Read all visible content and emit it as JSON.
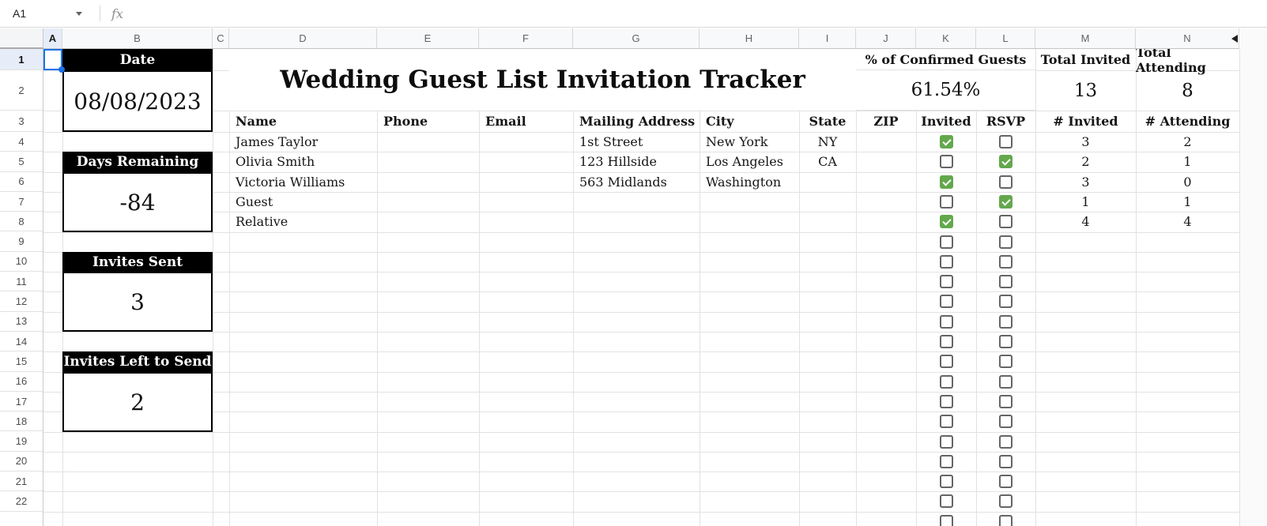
{
  "formula_bar": {
    "cell_reference": "A1",
    "fx_label": "fx"
  },
  "columns": {
    "letters": [
      "A",
      "B",
      "C",
      "D",
      "E",
      "F",
      "G",
      "H",
      "I",
      "J",
      "K",
      "L",
      "M",
      "N"
    ],
    "selected": "A"
  },
  "rows": {
    "numbers": [
      "1",
      "2",
      "3",
      "4",
      "5",
      "6",
      "7",
      "8",
      "9",
      "10",
      "11",
      "12",
      "13",
      "14",
      "15",
      "16",
      "17",
      "18",
      "19",
      "20",
      "21",
      "22"
    ],
    "selected": "1"
  },
  "title": "Wedding Guest List Invitation Tracker",
  "side_cards": [
    {
      "label": "Date",
      "value": "08/08/2023"
    },
    {
      "label": "Days Remaining",
      "value": "-84"
    },
    {
      "label": "Invites Sent",
      "value": "3"
    },
    {
      "label": "Invites Left to Send",
      "value": "2"
    }
  ],
  "summary": {
    "confirmed_label": "% of Confirmed Guests",
    "confirmed_value": "61.54%",
    "total_invited_label": "Total Invited",
    "total_invited_value": "13",
    "total_attending_label": "Total Attending",
    "total_attending_value": "8"
  },
  "table": {
    "headers": [
      "Name",
      "Phone",
      "Email",
      "Mailing Address",
      "City",
      "State",
      "ZIP",
      "Invited",
      "RSVP",
      "# Invited",
      "# Attending"
    ],
    "guests": [
      {
        "name": "James Taylor",
        "phone": "",
        "email": "",
        "address": "1st Street",
        "city": "New York",
        "state": "NY",
        "zip": "",
        "invited": true,
        "rsvp": false,
        "num_invited": "3",
        "num_attending": "2"
      },
      {
        "name": "Olivia Smith",
        "phone": "",
        "email": "",
        "address": "123 Hillside",
        "city": "Los Angeles",
        "state": "CA",
        "zip": "",
        "invited": false,
        "rsvp": true,
        "num_invited": "2",
        "num_attending": "1"
      },
      {
        "name": "Victoria Williams",
        "phone": "",
        "email": "",
        "address": "563 Midlands",
        "city": "Washington",
        "state": "",
        "zip": "",
        "invited": true,
        "rsvp": false,
        "num_invited": "3",
        "num_attending": "0"
      },
      {
        "name": "Guest",
        "phone": "",
        "email": "",
        "address": "",
        "city": "",
        "state": "",
        "zip": "",
        "invited": false,
        "rsvp": true,
        "num_invited": "1",
        "num_attending": "1"
      },
      {
        "name": "Relative",
        "phone": "",
        "email": "",
        "address": "",
        "city": "",
        "state": "",
        "zip": "",
        "invited": true,
        "rsvp": false,
        "num_invited": "4",
        "num_attending": "4"
      }
    ],
    "empty_checkbox_rows": 15
  },
  "colors": {
    "selection_accent": "#1a73e8",
    "checkbox_checked": "#63a84d",
    "card_background": "#000000",
    "card_text": "#ffffff"
  }
}
